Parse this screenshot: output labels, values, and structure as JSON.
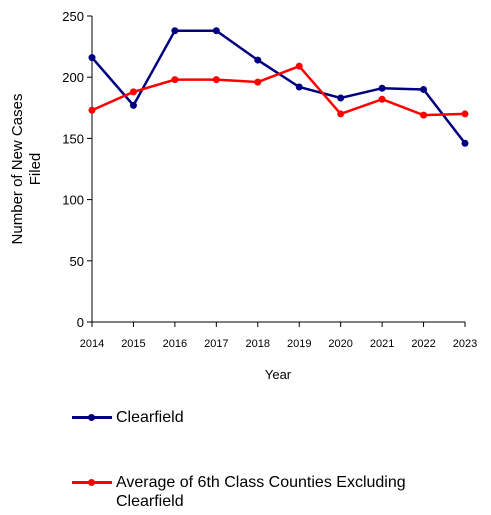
{
  "chart_data": {
    "type": "line",
    "title": "",
    "xlabel": "Year",
    "ylabel": "Number of New Cases Filed",
    "ylabel_lines": [
      "Number of New Cases",
      "Filed"
    ],
    "categories": [
      "2014",
      "2015",
      "2016",
      "2017",
      "2018",
      "2019",
      "2020",
      "2021",
      "2022",
      "2023"
    ],
    "yticks": [
      "0",
      "50",
      "100",
      "150",
      "200",
      "250"
    ],
    "ylim": [
      0,
      250
    ],
    "grid": false,
    "legend_position": "bottom",
    "series": [
      {
        "name": "Clearfield",
        "color": "#000080",
        "values": [
          216,
          177,
          238,
          238,
          214,
          192,
          183,
          191,
          190,
          146
        ]
      },
      {
        "name": "Average of 6th Class Counties Excluding Clearfield",
        "name_lines": [
          "Average of 6th Class Counties Excluding",
          "Clearfield"
        ],
        "color": "#ff0000",
        "values": [
          173,
          188,
          198,
          198,
          196,
          209,
          170,
          182,
          169,
          170
        ]
      }
    ]
  }
}
